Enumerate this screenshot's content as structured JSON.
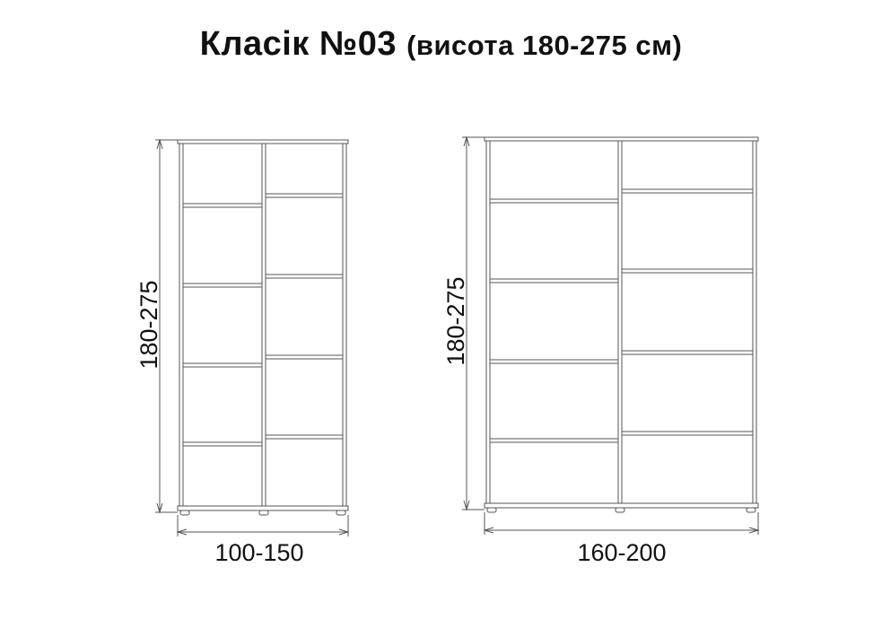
{
  "title": {
    "main": "Класік №03",
    "subtitle": "(висота 180-275 см)"
  },
  "wardrobes": [
    {
      "height_label": "180-275",
      "width_label": "100-150"
    },
    {
      "height_label": "180-275",
      "width_label": "160-200"
    }
  ],
  "colors": {
    "line": "#555555",
    "text": "#111111"
  }
}
